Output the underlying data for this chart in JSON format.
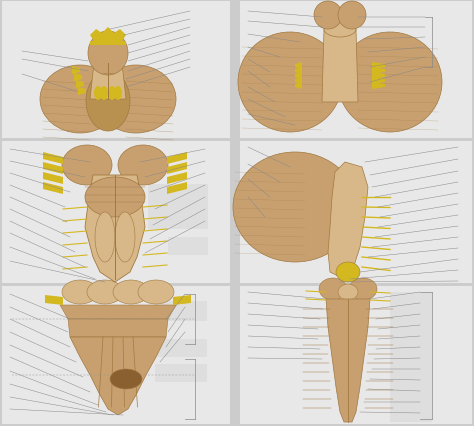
{
  "bg_color": "#cccccc",
  "panel_color": "#e8e8e8",
  "inner_color": "#dedede",
  "ac": "#c8a070",
  "ad": "#a07840",
  "al": "#d8b888",
  "ah": "#b89050",
  "yc": "#d4b820",
  "lc": "#888888",
  "wc": "#f8f4ec"
}
